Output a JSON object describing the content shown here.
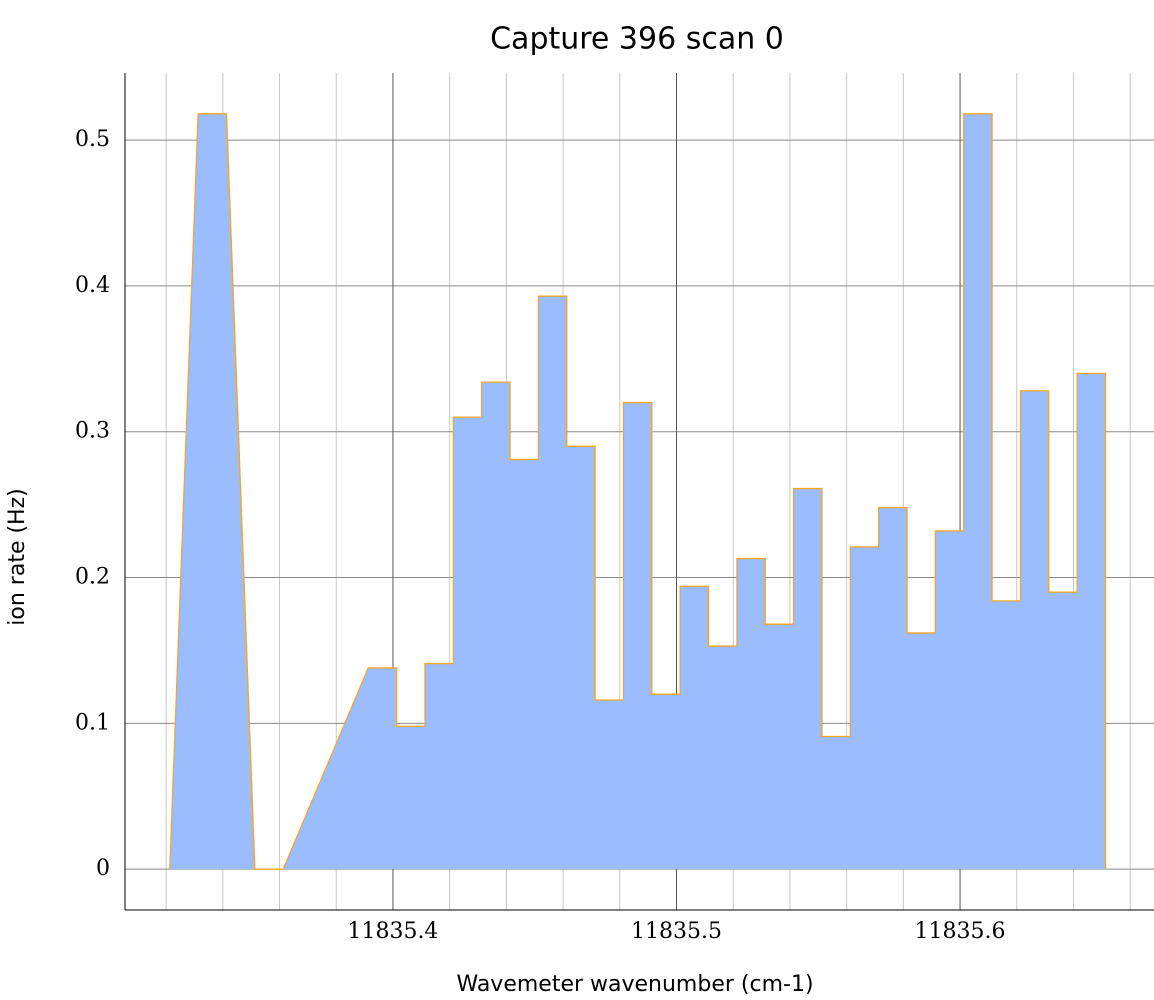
{
  "chart_data": {
    "type": "area",
    "title": "Capture 396 scan 0",
    "x_label": "Wavemeter wavenumber (cm-1)",
    "y_label": "ion rate (Hz)",
    "x": [
      11835.3213,
      11835.3313,
      11835.3413,
      11835.3513,
      11835.3613,
      11835.3913,
      11835.4013,
      11835.4013,
      11835.4113,
      11835.4113,
      11835.4213,
      11835.4213,
      11835.4313,
      11835.4313,
      11835.4413,
      11835.4413,
      11835.4513,
      11835.4513,
      11835.4613,
      11835.4613,
      11835.4713,
      11835.4713,
      11835.4813,
      11835.4813,
      11835.4913,
      11835.4913,
      11835.5013,
      11835.5013,
      11835.5113,
      11835.5113,
      11835.5213,
      11835.5213,
      11835.5313,
      11835.5313,
      11835.5413,
      11835.5413,
      11835.5513,
      11835.5513,
      11835.5613,
      11835.5613,
      11835.5713,
      11835.5713,
      11835.5813,
      11835.5813,
      11835.5913,
      11835.5913,
      11835.6013,
      11835.6013,
      11835.6113,
      11835.6113,
      11835.6213,
      11835.6213,
      11835.6313,
      11835.6313,
      11835.6413,
      11835.6413,
      11835.6513,
      11835.6513
    ],
    "values": [
      0,
      0.518,
      0.518,
      0,
      0,
      0.138,
      0.138,
      0.098,
      0.098,
      0.141,
      0.141,
      0.31,
      0.31,
      0.334,
      0.334,
      0.281,
      0.281,
      0.393,
      0.393,
      0.29,
      0.29,
      0.116,
      0.116,
      0.32,
      0.32,
      0.12,
      0.12,
      0.194,
      0.194,
      0.153,
      0.153,
      0.213,
      0.213,
      0.168,
      0.168,
      0.261,
      0.261,
      0.091,
      0.091,
      0.221,
      0.221,
      0.248,
      0.248,
      0.162,
      0.162,
      0.232,
      0.232,
      0.518,
      0.518,
      0.184,
      0.184,
      0.328,
      0.328,
      0.19,
      0.19,
      0.34,
      0.34,
      0
    ],
    "color": "#9bbcfd",
    "line_color": "#f5a623",
    "xlim": [
      11835.3055,
      11835.6684
    ],
    "xticks": [
      11835.4,
      11835.5,
      11835.6
    ],
    "x_minor_ticks": [
      11835.32,
      11835.34,
      11835.36,
      11835.38,
      11835.42,
      11835.44,
      11835.46,
      11835.48,
      11835.52,
      11835.54,
      11835.56,
      11835.58,
      11835.62,
      11835.64,
      11835.66
    ],
    "ylim": [
      -0.028,
      0.546
    ],
    "yticks": [
      0,
      0.1,
      0.2,
      0.3,
      0.4,
      0.5
    ],
    "grid": true
  }
}
